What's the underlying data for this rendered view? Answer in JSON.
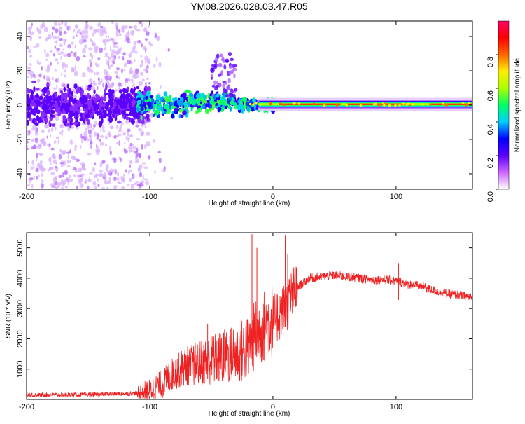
{
  "title": "YM08.2026.028.03.47.R05",
  "chart_data": [
    {
      "type": "heatmap",
      "name": "spectrogram",
      "xlabel": "Height of straight line (km)",
      "ylabel": "Frequency (Hz)",
      "xlim": [
        -200,
        162
      ],
      "ylim": [
        -49,
        49
      ],
      "xticks": [
        -200,
        -100,
        0,
        100
      ],
      "xtick_labels": [
        "-200",
        "-100",
        "0",
        "100"
      ],
      "yticks": [
        -40,
        -20,
        0,
        20,
        40
      ],
      "ytick_labels": [
        "-40",
        "-20",
        "0",
        "20",
        "40"
      ],
      "colorbar": {
        "label": "Normalized spectral amplitude",
        "range": [
          0,
          1
        ],
        "ticks": [
          0.0,
          0.2,
          0.4,
          0.6,
          0.8
        ],
        "tick_labels": [
          "0.0",
          "0.2",
          "0.4",
          "0.6",
          "0.8"
        ],
        "colors": [
          "#ffffff",
          "#cc66ff",
          "#5b00ff",
          "#0000ff",
          "#00ccff",
          "#00ff66",
          "#aaff00",
          "#ffee00",
          "#ff6600",
          "#ff0000",
          "#ff0066"
        ]
      },
      "features": {
        "noise_region_x": [
          -200,
          -100
        ],
        "scatter_region_x": [
          -100,
          0
        ],
        "stable_band_x": [
          0,
          162
        ],
        "band_center_hz": 0.5,
        "band_color": "#ff2200"
      }
    },
    {
      "type": "line",
      "name": "snr",
      "xlabel": "Height of straight line (km)",
      "ylabel": "SNR (10 * v/v)",
      "xlim": [
        -200,
        162
      ],
      "ylim": [
        0,
        5500
      ],
      "xticks": [
        -200,
        -100,
        0,
        100
      ],
      "xtick_labels": [
        "-200",
        "-100",
        "0",
        "100"
      ],
      "yticks": [
        1000,
        2000,
        3000,
        4000,
        5000
      ],
      "ytick_labels": [
        "1000",
        "2000",
        "3000",
        "4000",
        "5000"
      ],
      "color": "#ee2222",
      "envelope": {
        "x": [
          -200,
          -150,
          -110,
          -100,
          -90,
          -80,
          -70,
          -60,
          -50,
          -40,
          -30,
          -20,
          -15,
          -10,
          -5,
          0,
          5,
          10,
          15,
          20,
          30,
          40,
          50,
          60,
          70,
          80,
          90,
          100,
          110,
          120,
          130,
          140,
          150,
          162
        ],
        "y": [
          150,
          160,
          200,
          300,
          500,
          900,
          1100,
          1200,
          1300,
          1400,
          1500,
          1700,
          2100,
          2300,
          2500,
          2600,
          2800,
          3000,
          3400,
          3700,
          4000,
          4050,
          4100,
          4050,
          4000,
          3950,
          3950,
          3900,
          3800,
          3750,
          3600,
          3500,
          3450,
          3350
        ]
      },
      "spikes": [
        {
          "x": -17,
          "y": 5450
        },
        {
          "x": -13,
          "y": 5000
        },
        {
          "x": 10,
          "y": 5400
        },
        {
          "x": 12,
          "y": 4800
        },
        {
          "x": -53,
          "y": 2500
        },
        {
          "x": -40,
          "y": 2200
        },
        {
          "x": 102,
          "y": 4500
        }
      ]
    }
  ]
}
